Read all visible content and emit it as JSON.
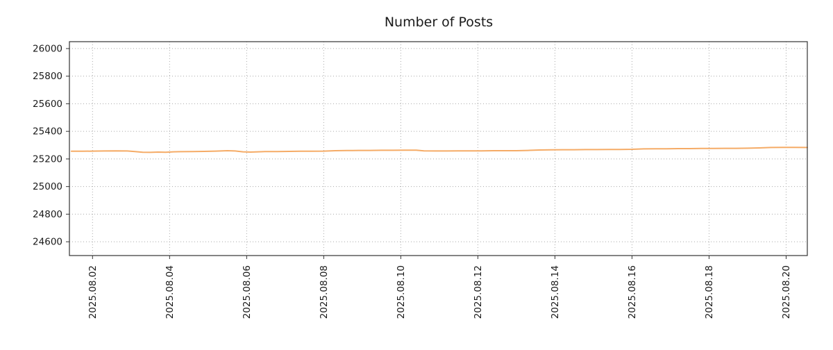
{
  "chart_data": {
    "type": "line",
    "title": "Number of Posts",
    "xlabel": "",
    "ylabel": "",
    "x_unit": "day of August 2025",
    "x": [
      1.45,
      1.75,
      2.0,
      2.3,
      2.6,
      2.9,
      3.1,
      3.3,
      3.5,
      3.7,
      3.9,
      4.1,
      4.3,
      4.6,
      4.9,
      5.2,
      5.5,
      5.7,
      5.9,
      6.1,
      6.3,
      6.5,
      6.8,
      7.1,
      7.4,
      7.7,
      8.0,
      8.3,
      8.6,
      8.9,
      9.2,
      9.5,
      9.8,
      10.1,
      10.4,
      10.6,
      10.9,
      11.2,
      11.5,
      11.8,
      12.1,
      12.4,
      12.7,
      13.0,
      13.3,
      13.6,
      13.9,
      14.2,
      14.5,
      14.8,
      15.1,
      15.4,
      15.7,
      16.0,
      16.3,
      16.6,
      16.9,
      17.2,
      17.5,
      17.8,
      18.1,
      18.4,
      18.7,
      19.0,
      19.3,
      19.6,
      19.9,
      20.2,
      20.55
    ],
    "values": [
      25256,
      25256,
      25257,
      25258,
      25259,
      25258,
      25254,
      25249,
      25248,
      25250,
      25249,
      25252,
      25253,
      25254,
      25255,
      25257,
      25260,
      25258,
      25252,
      25250,
      25252,
      25254,
      25254,
      25255,
      25256,
      25256,
      25257,
      25260,
      25261,
      25262,
      25262,
      25263,
      25263,
      25264,
      25264,
      25259,
      25258,
      25258,
      25259,
      25259,
      25259,
      25260,
      25260,
      25260,
      25262,
      25265,
      25266,
      25267,
      25267,
      25268,
      25268,
      25269,
      25269,
      25270,
      25273,
      25274,
      25274,
      25275,
      25275,
      25276,
      25276,
      25277,
      25277,
      25278,
      25280,
      25283,
      25284,
      25284,
      25283
    ],
    "xlim": [
      1.4,
      20.55
    ],
    "ylim": [
      24500,
      26050
    ],
    "yticks": [
      24600,
      24800,
      25000,
      25200,
      25400,
      25600,
      25800,
      26000
    ],
    "xticks": [
      {
        "value": 2,
        "label": "2025.08.02"
      },
      {
        "value": 4,
        "label": "2025.08.04"
      },
      {
        "value": 6,
        "label": "2025.08.06"
      },
      {
        "value": 8,
        "label": "2025.08.08"
      },
      {
        "value": 10,
        "label": "2025.08.10"
      },
      {
        "value": 12,
        "label": "2025.08.12"
      },
      {
        "value": 14,
        "label": "2025.08.14"
      },
      {
        "value": 16,
        "label": "2025.08.16"
      },
      {
        "value": 18,
        "label": "2025.08.18"
      },
      {
        "value": 20,
        "label": "2025.08.20"
      }
    ],
    "grid": true,
    "grid_style": "dotted",
    "legend": "none",
    "line_color": "#f5ab66",
    "grid_color": "#a8a8a8",
    "axis_color": "#333333",
    "text_color": "#1a1a1a",
    "background": "#ffffff"
  }
}
